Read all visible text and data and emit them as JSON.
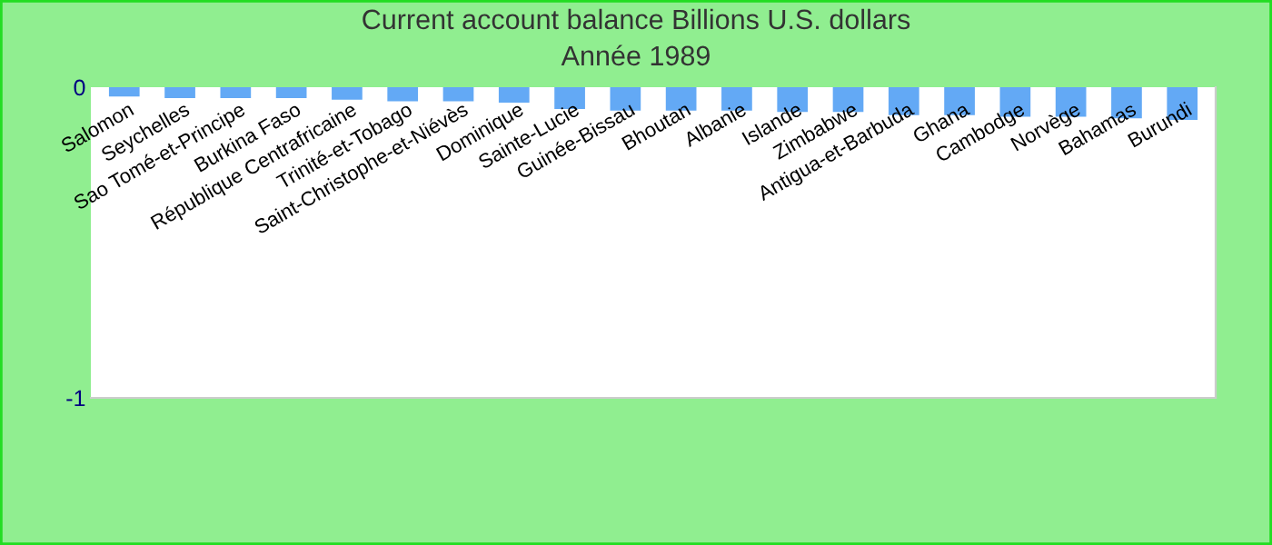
{
  "chart_data": {
    "type": "bar",
    "title": "Current account balance Billions U.S. dollars",
    "subtitle": "Année 1989",
    "categories": [
      "Salomon",
      "Seychelles",
      "Sao Tomé-et-Principe",
      "Burkina Faso",
      "République Centrafricaine",
      "Trinité-et-Tobago",
      "Saint-Christophe-et-Niévès",
      "Dominique",
      "Sainte-Lucie",
      "Guinée-Bissau",
      "Bhoutan",
      "Albanie",
      "Islande",
      "Zimbabwe",
      "Antigua-et-Barbuda",
      "Ghana",
      "Cambodge",
      "Norvège",
      "Bahamas",
      "Burundi"
    ],
    "values": [
      -0.03,
      -0.035,
      -0.035,
      -0.035,
      -0.04,
      -0.045,
      -0.045,
      -0.05,
      -0.07,
      -0.075,
      -0.075,
      -0.075,
      -0.08,
      -0.08,
      -0.09,
      -0.09,
      -0.095,
      -0.095,
      -0.1,
      -0.105
    ],
    "color": "#63a9f5",
    "ylim": [
      -1,
      0
    ],
    "yticks": [
      -1,
      0
    ],
    "grid": false,
    "legend": false
  }
}
